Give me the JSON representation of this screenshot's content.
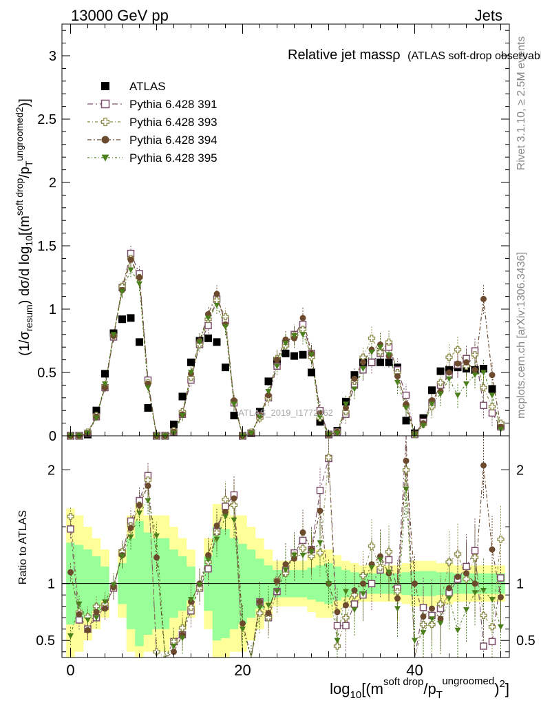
{
  "header": {
    "left": "13000 GeV pp",
    "right": "Jets"
  },
  "side_labels": {
    "rivet": "Rivet 3.1.10, ≥ 2.5M events",
    "mcplots": "mcplots.cern.ch [arXiv:1306.3436]"
  },
  "watermark": "ATLAS_2019_I1772062",
  "chart_data": [
    {
      "panel": "main",
      "type": "line",
      "title": "Relative jet massρ",
      "subtitle": "(ATLAS soft-drop observables)",
      "ylabel": "(1/σresum) dσ/d log10[(m^soft drop/pT^ungroomed)^2]",
      "xlabel": "log10[(m^soft drop/pT^ungroomed)^2]",
      "xlim": [
        -1,
        51
      ],
      "ylim": [
        0,
        3.25
      ],
      "x_ticks": [
        "0",
        "20",
        "40"
      ],
      "y_ticks": [
        "0",
        "0.5",
        "1",
        "1.5",
        "2",
        "2.5",
        "3"
      ],
      "legend_position": "top-left",
      "x": [
        0,
        1,
        2,
        3,
        4,
        5,
        6,
        7,
        8,
        9,
        10,
        11,
        12,
        13,
        14,
        15,
        16,
        17,
        18,
        19,
        20,
        21,
        22,
        23,
        24,
        25,
        26,
        27,
        28,
        29,
        30,
        31,
        32,
        33,
        34,
        35,
        36,
        37,
        38,
        39,
        40,
        41,
        42,
        43,
        44,
        45,
        46,
        47,
        48,
        49,
        50
      ],
      "series": [
        {
          "name": "ATLAS",
          "color": "#000000",
          "marker": "filled-square",
          "values": [
            0,
            0,
            0.01,
            0.2,
            0.49,
            0.81,
            0.92,
            0.93,
            0.74,
            0.22,
            0,
            0,
            0.09,
            0.31,
            0.58,
            0.75,
            0.77,
            0.74,
            0.54,
            0.16,
            0,
            0.02,
            0.19,
            0.43,
            0.59,
            0.65,
            0.63,
            0.64,
            0.5,
            0.11,
            0.01,
            0.04,
            0.27,
            0.48,
            0.58,
            0.58,
            0.58,
            0.58,
            0.54,
            0.12,
            0.02,
            0.14,
            0.36,
            0.51,
            0.52,
            0.54,
            0.53,
            0.52,
            0.53,
            0.37,
            0.08
          ]
        },
        {
          "name": "Pythia 6.428 391",
          "color": "#7b4f6a",
          "marker": "open-square",
          "values": [
            0,
            0,
            0.02,
            0.15,
            0.38,
            0.78,
            1.17,
            1.44,
            1.28,
            0.44,
            0,
            0,
            0.03,
            0.17,
            0.44,
            0.72,
            0.87,
            1.08,
            0.91,
            0.26,
            0,
            0.02,
            0.16,
            0.3,
            0.55,
            0.73,
            0.8,
            0.88,
            0.65,
            0.2,
            0.01,
            0.03,
            0.17,
            0.4,
            0.52,
            0.58,
            0.65,
            0.7,
            0.52,
            0.32,
            0.01,
            0.11,
            0.26,
            0.4,
            0.48,
            0.56,
            0.61,
            0.67,
            0.24,
            0.18,
            0.07
          ]
        },
        {
          "name": "Pythia 6.428 393",
          "color": "#8c8c4a",
          "marker": "open-cross",
          "values": [
            0,
            0,
            0.03,
            0.16,
            0.39,
            0.79,
            1.18,
            1.4,
            1.25,
            0.42,
            0,
            0,
            0.04,
            0.19,
            0.46,
            0.72,
            0.92,
            1.07,
            0.94,
            0.27,
            0,
            0.03,
            0.14,
            0.3,
            0.61,
            0.71,
            0.79,
            0.84,
            0.62,
            0.14,
            0.01,
            0.03,
            0.19,
            0.43,
            0.62,
            0.77,
            0.66,
            0.74,
            0.5,
            0.24,
            0.01,
            0.09,
            0.23,
            0.42,
            0.62,
            0.68,
            0.55,
            0.64,
            0.38,
            0.23,
            0.1
          ]
        },
        {
          "name": "Pythia 6.428 394",
          "color": "#6b4a2e",
          "marker": "filled-circle",
          "values": [
            0,
            0,
            0.02,
            0.15,
            0.38,
            0.79,
            1.15,
            1.39,
            1.25,
            0.41,
            0,
            0,
            0.03,
            0.17,
            0.49,
            0.75,
            0.96,
            1.12,
            0.88,
            0.28,
            0,
            0.02,
            0.16,
            0.32,
            0.6,
            0.76,
            0.77,
            0.93,
            0.65,
            0.18,
            0.01,
            0.03,
            0.22,
            0.45,
            0.58,
            0.68,
            0.72,
            0.63,
            0.47,
            0.25,
            0.02,
            0.1,
            0.28,
            0.35,
            0.5,
            0.57,
            0.58,
            0.52,
            1.08,
            0.48,
            0.07
          ]
        },
        {
          "name": "Pythia 6.428 395",
          "color": "#4a7f1c",
          "marker": "filled-triangle-down",
          "values": [
            0,
            0,
            0.02,
            0.14,
            0.41,
            0.8,
            1.14,
            1.31,
            1.2,
            0.38,
            0,
            0,
            0.02,
            0.16,
            0.5,
            0.74,
            0.93,
            1.03,
            0.86,
            0.25,
            0,
            0.02,
            0.15,
            0.35,
            0.55,
            0.73,
            0.79,
            0.8,
            0.64,
            0.15,
            0.01,
            0.02,
            0.25,
            0.37,
            0.53,
            0.66,
            0.7,
            0.64,
            0.42,
            0.22,
            0.01,
            0.08,
            0.25,
            0.33,
            0.45,
            0.32,
            0.41,
            0.48,
            0.5,
            0.32,
            0.05
          ]
        }
      ]
    },
    {
      "panel": "ratio",
      "type": "line",
      "ylabel": "Ratio to ATLAS",
      "ylim": [
        0.35,
        2.3
      ],
      "y_ticks": [
        "0.5",
        "1",
        "2"
      ],
      "reference_line": 1,
      "band_colors": {
        "total": "#ffff99",
        "stat": "#99ff99"
      },
      "x": [
        0,
        1,
        2,
        3,
        4,
        5,
        6,
        7,
        8,
        9,
        10,
        11,
        12,
        13,
        14,
        15,
        16,
        17,
        18,
        19,
        20,
        21,
        22,
        23,
        24,
        25,
        26,
        27,
        28,
        29,
        30,
        31,
        32,
        33,
        34,
        35,
        36,
        37,
        38,
        39,
        40,
        41,
        42,
        43,
        44,
        45,
        46,
        47,
        48,
        49,
        50
      ],
      "band_total_half_width": [
        0.66,
        0.6,
        0.5,
        0.4,
        0.3,
        0.0,
        0.3,
        0.6,
        0.7,
        0.6,
        0.6,
        0.6,
        0.5,
        0.4,
        0.3,
        0.0,
        0.4,
        0.7,
        0.7,
        0.6,
        0.6,
        0.5,
        0.4,
        0.3,
        0.2,
        0.2,
        0.2,
        0.2,
        0.25,
        0.3,
        0.3,
        0.25,
        0.2,
        0.18,
        0.16,
        0.16,
        0.16,
        0.16,
        0.16,
        0.18,
        0.2,
        0.2,
        0.2,
        0.18,
        0.18,
        0.16,
        0.16,
        0.16,
        0.16,
        0.16,
        0.16
      ],
      "band_stat_half_width": [
        0.36,
        0.34,
        0.3,
        0.24,
        0.15,
        0.0,
        0.18,
        0.4,
        0.55,
        0.45,
        0.4,
        0.4,
        0.3,
        0.24,
        0.15,
        0.0,
        0.24,
        0.5,
        0.48,
        0.4,
        0.35,
        0.3,
        0.22,
        0.16,
        0.12,
        0.12,
        0.12,
        0.12,
        0.14,
        0.16,
        0.18,
        0.15,
        0.12,
        0.1,
        0.09,
        0.09,
        0.09,
        0.09,
        0.09,
        0.1,
        0.11,
        0.11,
        0.11,
        0.1,
        0.1,
        0.09,
        0.09,
        0.09,
        0.09,
        0.09,
        0.09
      ],
      "series": [
        {
          "name": "Pythia 6.428 391",
          "values": [
            1.48,
            0.68,
            0.6,
            0.7,
            0.8,
            0.96,
            1.27,
            1.55,
            1.73,
            1.95,
            0.3,
            0.3,
            0.49,
            0.55,
            0.76,
            0.96,
            1.13,
            1.46,
            1.68,
            1.78,
            0.3,
            0.3,
            0.84,
            0.7,
            0.93,
            1.12,
            1.27,
            1.38,
            1.3,
            1.82,
            2.1,
            0.63,
            0.63,
            0.82,
            0.9,
            1.0,
            1.12,
            1.21,
            0.96,
            2.67,
            0.3,
            0.79,
            0.72,
            0.78,
            0.92,
            1.04,
            1.15,
            1.29,
            0.45,
            0.49,
            1.05
          ]
        },
        {
          "name": "Pythia 6.428 393",
          "values": [
            1.59,
            0.75,
            0.71,
            0.8,
            0.82,
            0.97,
            1.28,
            1.51,
            1.69,
            1.91,
            0.4,
            0.3,
            0.49,
            0.61,
            0.79,
            0.96,
            1.19,
            1.45,
            1.74,
            1.69,
            0.3,
            0.3,
            0.74,
            0.7,
            1.03,
            1.09,
            1.25,
            1.31,
            1.24,
            1.27,
            2.11,
            0.45,
            0.7,
            0.9,
            1.07,
            1.33,
            1.14,
            1.28,
            0.93,
            2.0,
            0.3,
            0.64,
            0.64,
            0.82,
            1.19,
            1.26,
            1.04,
            1.23,
            0.72,
            0.62,
            1.39
          ]
        },
        {
          "name": "Pythia 6.428 394",
          "values": [
            1.1,
            0.73,
            0.59,
            0.75,
            0.78,
            0.97,
            1.25,
            1.49,
            1.69,
            1.86,
            1.23,
            0.3,
            0.4,
            0.55,
            0.84,
            1.0,
            1.25,
            1.51,
            1.63,
            1.75,
            0.65,
            0.3,
            0.84,
            0.74,
            1.02,
            1.17,
            1.22,
            1.45,
            1.3,
            1.64,
            1.0,
            0.75,
            0.81,
            0.94,
            1.0,
            1.17,
            1.24,
            1.09,
            0.87,
            2.08,
            1.0,
            0.71,
            0.78,
            0.69,
            0.96,
            1.06,
            1.09,
            1.0,
            2.04,
            1.3,
            0.88
          ]
        },
        {
          "name": "Pythia 6.428 395",
          "values": [
            0.54,
            0.82,
            0.68,
            0.7,
            0.84,
            0.99,
            1.24,
            1.41,
            1.62,
            1.73,
            1.42,
            0.3,
            0.45,
            0.52,
            0.86,
            0.99,
            1.21,
            1.39,
            1.59,
            1.56,
            0.6,
            0.3,
            0.79,
            0.81,
            0.93,
            1.12,
            1.25,
            1.25,
            1.28,
            1.36,
            1.0,
            0.5,
            0.93,
            0.77,
            0.91,
            1.14,
            1.21,
            1.1,
            0.78,
            1.83,
            0.5,
            0.57,
            0.69,
            0.65,
            0.87,
            0.59,
            0.77,
            0.92,
            0.94,
            0.86,
            0.62
          ]
        }
      ]
    }
  ]
}
